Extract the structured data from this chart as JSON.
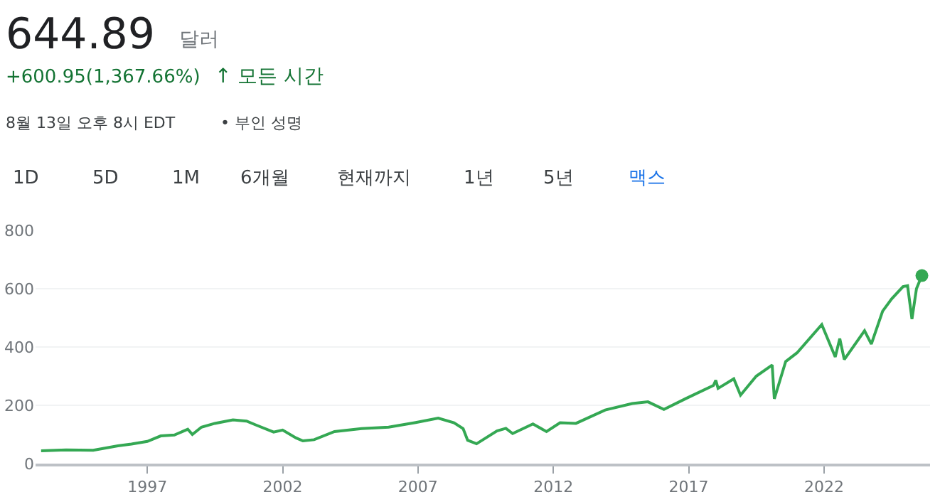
{
  "chart_data": {
    "type": "line",
    "title": "644.89",
    "subtitle": "+600.95(1,367.66%)",
    "annotations": [
      "달러",
      "↑ 모든 시간",
      "8월 13일 오후 8시 EDT",
      "• 부인 성명",
      "1D",
      "5D",
      "1M",
      "6개월",
      "현재까지",
      "1년",
      "5년",
      "맥스"
    ],
    "x": [
      "1993-01-29",
      "1994-01",
      "1995-01",
      "1995-12",
      "1996-06",
      "1997-01",
      "1997-07",
      "1998-01",
      "1998-07",
      "1998-09",
      "1999-01",
      "1999-07",
      "2000-03",
      "2000-09",
      "2001-01",
      "2001-09",
      "2002-01",
      "2002-07",
      "2002-10",
      "2003-03",
      "2003-12",
      "2004-12",
      "2005-12",
      "2006-12",
      "2007-10",
      "2008-05",
      "2008-09",
      "2008-11",
      "2009-03",
      "2009-12",
      "2010-04",
      "2010-07",
      "2011-04",
      "2011-10",
      "2012-04",
      "2012-11",
      "2013-12",
      "2014-12",
      "2015-07",
      "2016-02",
      "2016-12",
      "2017-12",
      "2018-01",
      "2018-02",
      "2018-09",
      "2018-12",
      "2019-07",
      "2020-02",
      "2020-03",
      "2020-08",
      "2021-01",
      "2021-12",
      "2022-06",
      "2022-08",
      "2022-10",
      "2023-07",
      "2023-10",
      "2024-03",
      "2024-07",
      "2024-12",
      "2025-02",
      "2025-04",
      "2025-06",
      "2025-08-13"
    ],
    "series": [
      {
        "color": "#34a853",
        "values": [
          44,
          47,
          46,
          61,
          67,
          76,
          95,
          98,
          118,
          100,
          125,
          138,
          150,
          146,
          133,
          108,
          115,
          88,
          78,
          82,
          110,
          120,
          125,
          141,
          156,
          140,
          120,
          80,
          68,
          112,
          121,
          103,
          136,
          110,
          140,
          138,
          184,
          206,
          212,
          186,
          224,
          268,
          286,
          258,
          291,
          235,
          300,
          338,
          222,
          350,
          380,
          477,
          366,
          429,
          357,
          456,
          410,
          523,
          565,
          607,
          610,
          496,
          600,
          645
        ]
      }
    ],
    "xlim": [
      "1992-11-15",
      "2025-12-01"
    ],
    "xticks": [
      "1997",
      "2002",
      "2007",
      "2012",
      "2017",
      "2022"
    ],
    "ylim": [
      0,
      800
    ],
    "yticks": [
      0,
      200,
      400,
      600,
      800
    ],
    "grid": "y"
  }
}
